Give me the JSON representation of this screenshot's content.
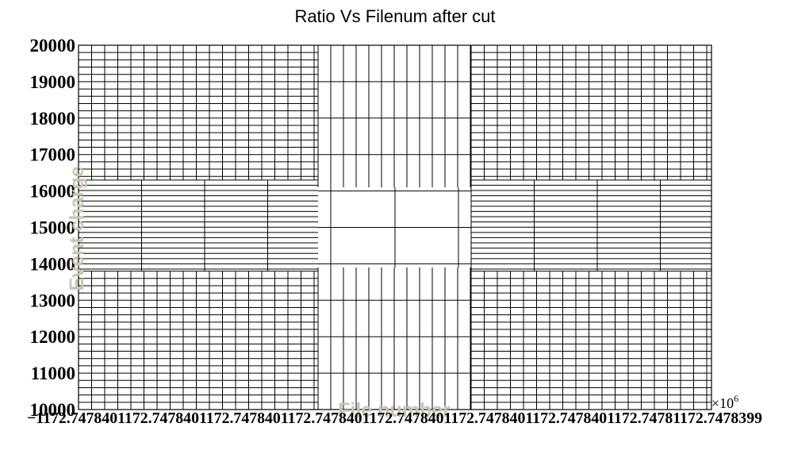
{
  "chart_data": {
    "type": "scatter",
    "title": "Ratio Vs Filenum after cut",
    "xlabel": "File number",
    "ylabel": "Event charge",
    "x_multiplier": "×10",
    "x_multiplier_exponent": "6",
    "ylim": [
      10000,
      20000
    ],
    "yticks": [
      "10000",
      "11000",
      "12000",
      "13000",
      "14000",
      "15000",
      "16000",
      "17000",
      "18000",
      "19000",
      "20000"
    ],
    "xticks": [
      "−1172.7478408",
      "−1172.7478406",
      "−1172.7478405",
      "−1172.7478403",
      "−1172.7478402",
      "−1172.7478400",
      "−1172.7478399"
    ],
    "xticks_visible_text": "−1172.7478401172.7478401172.7478401172.7478401172.7478401172.7478401172.7478401172.74781172.7478399",
    "series": [],
    "grid": true,
    "legend": "none"
  }
}
